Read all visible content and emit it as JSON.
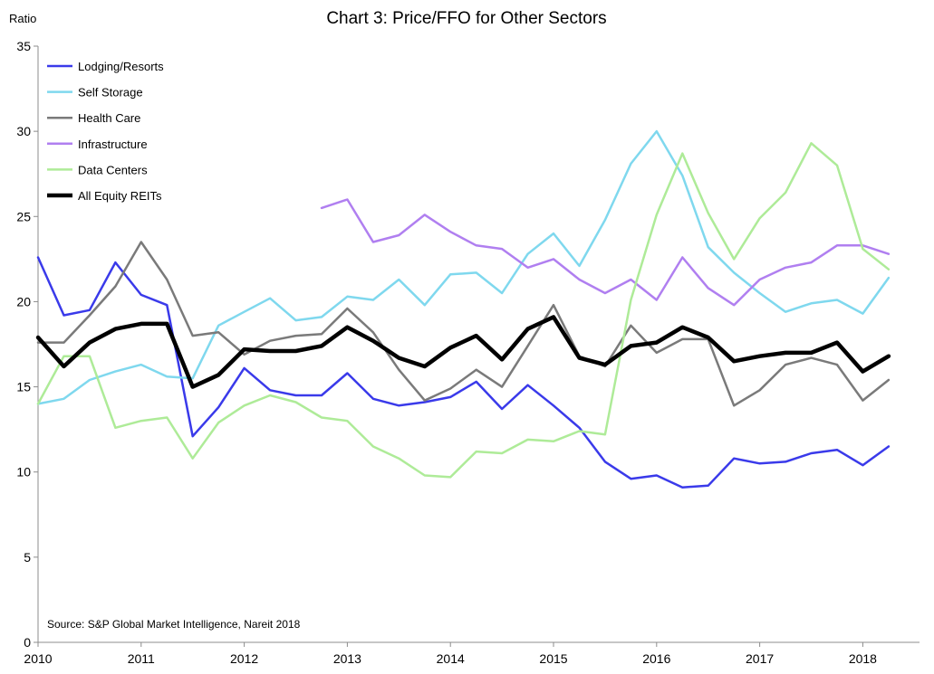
{
  "chart_data": {
    "type": "line",
    "title": "Chart 3: Price/FFO for Other Sectors",
    "ylabel": "Ratio",
    "xlabel": "",
    "source": "Source: S&P Global Market Intelligence, Nareit 2018",
    "ylim": [
      0,
      35
    ],
    "yticks": [
      0,
      5,
      10,
      15,
      20,
      25,
      30,
      35
    ],
    "xticks": [
      "2010",
      "2011",
      "2012",
      "2013",
      "2014",
      "2015",
      "2016",
      "2017",
      "2018"
    ],
    "x": [
      "2009-Q4",
      "2010-Q1",
      "2010-Q2",
      "2010-Q3",
      "2010-Q4",
      "2011-Q1",
      "2011-Q2",
      "2011-Q3",
      "2011-Q4",
      "2012-Q1",
      "2012-Q2",
      "2012-Q3",
      "2012-Q4",
      "2013-Q1",
      "2013-Q2",
      "2013-Q3",
      "2013-Q4",
      "2014-Q1",
      "2014-Q2",
      "2014-Q3",
      "2014-Q4",
      "2015-Q1",
      "2015-Q2",
      "2015-Q3",
      "2015-Q4",
      "2016-Q1",
      "2016-Q2",
      "2016-Q3",
      "2016-Q4",
      "2017-Q1",
      "2017-Q2",
      "2017-Q3",
      "2017-Q4",
      "2018-Q1"
    ],
    "grid": false,
    "legend_position": "top-left",
    "series": [
      {
        "name": "Lodging/Resorts",
        "color": "#3a3aea",
        "width": 2.5,
        "values": [
          22.6,
          19.2,
          19.5,
          22.3,
          20.4,
          19.8,
          12.1,
          13.8,
          16.1,
          14.8,
          14.5,
          14.5,
          15.8,
          14.3,
          13.9,
          14.1,
          14.4,
          15.3,
          13.7,
          15.1,
          13.9,
          12.6,
          10.6,
          9.6,
          9.8,
          9.1,
          9.2,
          10.8,
          10.5,
          10.6,
          11.1,
          11.3,
          10.4,
          11.5
        ]
      },
      {
        "name": "Self Storage",
        "color": "#7fd8ee",
        "width": 2.5,
        "values": [
          14.0,
          14.3,
          15.4,
          15.9,
          16.3,
          15.6,
          15.5,
          18.6,
          19.4,
          20.2,
          18.9,
          19.1,
          20.3,
          20.1,
          21.3,
          19.8,
          21.6,
          21.7,
          20.5,
          22.8,
          24.0,
          22.1,
          24.8,
          28.1,
          30.0,
          27.4,
          23.2,
          21.7,
          20.5,
          19.4,
          19.9,
          20.1,
          19.3,
          21.4
        ]
      },
      {
        "name": "Health Care",
        "color": "#7a7a7a",
        "width": 2.5,
        "values": [
          17.6,
          17.6,
          19.2,
          20.9,
          23.5,
          21.3,
          18.0,
          18.2,
          16.9,
          17.7,
          18.0,
          18.1,
          19.6,
          18.2,
          16.0,
          14.2,
          14.9,
          16.0,
          15.0,
          17.4,
          19.8,
          16.8,
          16.2,
          18.6,
          17.0,
          17.8,
          17.8,
          13.9,
          14.8,
          16.3,
          16.7,
          16.3,
          14.2,
          15.4
        ]
      },
      {
        "name": "Infrastructure",
        "color": "#b07ff0",
        "width": 2.5,
        "values": [
          null,
          null,
          null,
          null,
          null,
          null,
          null,
          null,
          null,
          null,
          null,
          25.5,
          26.0,
          23.5,
          23.9,
          25.1,
          24.1,
          23.3,
          23.1,
          22.0,
          22.5,
          21.3,
          20.5,
          21.3,
          20.1,
          22.6,
          20.8,
          19.8,
          21.3,
          22.0,
          22.3,
          23.3,
          23.3,
          22.8
        ]
      },
      {
        "name": "Data Centers",
        "color": "#aeeb98",
        "width": 2.5,
        "values": [
          14.0,
          16.8,
          16.8,
          12.6,
          13.0,
          13.2,
          10.8,
          12.9,
          13.9,
          14.5,
          14.1,
          13.2,
          13.0,
          11.5,
          10.8,
          9.8,
          9.7,
          11.2,
          11.1,
          11.9,
          11.8,
          12.4,
          12.2,
          20.1,
          25.1,
          28.7,
          25.2,
          22.5,
          24.9,
          26.4,
          29.3,
          28.0,
          23.1,
          21.9
        ]
      },
      {
        "name": "All Equity REITs",
        "color": "#000000",
        "width": 4.5,
        "values": [
          17.9,
          16.2,
          17.6,
          18.4,
          18.7,
          18.7,
          15.0,
          15.7,
          17.2,
          17.1,
          17.1,
          17.4,
          18.5,
          17.7,
          16.7,
          16.2,
          17.3,
          18.0,
          16.6,
          18.4,
          19.1,
          16.7,
          16.3,
          17.4,
          17.6,
          18.5,
          17.9,
          16.5,
          16.8,
          17.0,
          17.0,
          17.6,
          15.9,
          16.8
        ]
      }
    ]
  }
}
